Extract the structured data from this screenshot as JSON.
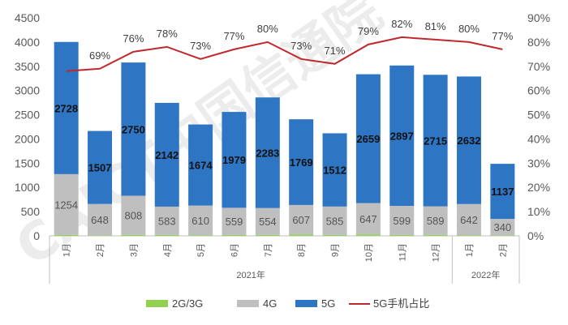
{
  "chart_data": {
    "type": "bar",
    "stacked": true,
    "categories": [
      "1月",
      "2月",
      "3月",
      "4月",
      "5月",
      "6月",
      "7月",
      "8月",
      "9月",
      "10月",
      "11月",
      "12月",
      "1月",
      "2月"
    ],
    "groups": [
      {
        "label": "2021年",
        "count": 12
      },
      {
        "label": "2022年",
        "count": 2
      }
    ],
    "series": [
      {
        "name": "2G/3G",
        "values": [
          20,
          10,
          20,
          20,
          15,
          20,
          20,
          30,
          20,
          30,
          20,
          20,
          15,
          10
        ],
        "color": "#92d050"
      },
      {
        "name": "4G",
        "values": [
          1254,
          648,
          808,
          583,
          610,
          559,
          554,
          607,
          585,
          647,
          599,
          589,
          642,
          340
        ],
        "color": "#bfbfbf"
      },
      {
        "name": "5G",
        "values": [
          2728,
          1507,
          2750,
          2142,
          1674,
          1979,
          2283,
          1769,
          1512,
          2659,
          2897,
          2715,
          2632,
          1137
        ],
        "color": "#2e75c3"
      }
    ],
    "line_series": {
      "name": "5G手机占比",
      "values": [
        68,
        69,
        76,
        78,
        73,
        77,
        80,
        73,
        71,
        79,
        82,
        81,
        80,
        77
      ],
      "color": "#c0282e"
    },
    "line_labels": [
      "",
      "69%",
      "76%",
      "78%",
      "73%",
      "77%",
      "80%",
      "73%",
      "71%",
      "79%",
      "82%",
      "81%",
      "80%",
      "77%"
    ],
    "ylim": [
      0,
      4500
    ],
    "yticks": [
      "0",
      "500",
      "1000",
      "1500",
      "2000",
      "2500",
      "3000",
      "3500",
      "4000",
      "4500"
    ],
    "y2lim": [
      0,
      90
    ],
    "y2ticks": [
      "0%",
      "10%",
      "20%",
      "30%",
      "40%",
      "50%",
      "60%",
      "70%",
      "80%",
      "90%"
    ],
    "legend_position": "bottom",
    "grid": false
  },
  "watermark": "CAICT中国信通院"
}
